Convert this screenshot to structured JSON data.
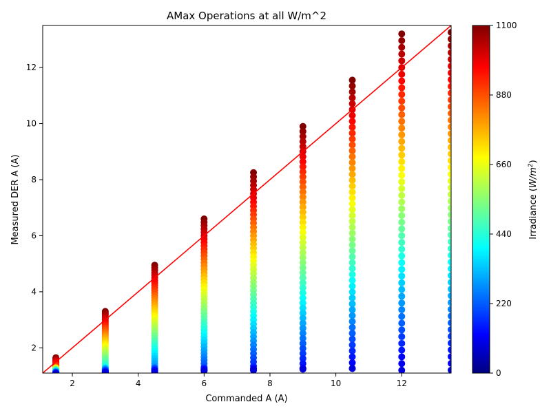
{
  "chart_data": {
    "type": "scatter",
    "title": "AMax Operations at all W/m^2",
    "xlabel": "Commanded A (A)",
    "ylabel": "Measured DER A (A)",
    "xlim": [
      1.1,
      13.5
    ],
    "ylim": [
      1.1,
      13.5
    ],
    "x_ticks": [
      2,
      4,
      6,
      8,
      10,
      12
    ],
    "y_ticks": [
      2,
      4,
      6,
      8,
      10,
      12
    ],
    "x_tick_labels": [
      "2",
      "4",
      "6",
      "8",
      "10",
      "12"
    ],
    "y_tick_labels": [
      "2",
      "4",
      "6",
      "8",
      "10",
      "12"
    ],
    "grid": false,
    "colormap": "jet",
    "colorbar": {
      "label_prefix": "Irradiance (",
      "label_math": "W/m",
      "label_sup": "2",
      "label_suffix": ")",
      "range": [
        0,
        1100
      ],
      "ticks": [
        0,
        220,
        440,
        660,
        880,
        1100
      ],
      "tick_labels": [
        "0",
        "220",
        "440",
        "660",
        "880",
        "1100"
      ]
    },
    "commanded_levels": [
      1.5,
      3.0,
      4.5,
      6.0,
      7.5,
      9.0,
      10.5,
      12.0,
      13.5
    ],
    "measured_model": "measured = min(commanded, 12.05) * irradiance / 1000, for irradiance 100-1100 W/m^2; values below 1.2 A clipped near axis",
    "reference_line": {
      "from": [
        1.1,
        1.1
      ],
      "to": [
        13.5,
        13.5
      ],
      "color": "#ff0000",
      "label": "y = x"
    },
    "marker_color_note": "Color encodes irradiance on jet scale"
  }
}
